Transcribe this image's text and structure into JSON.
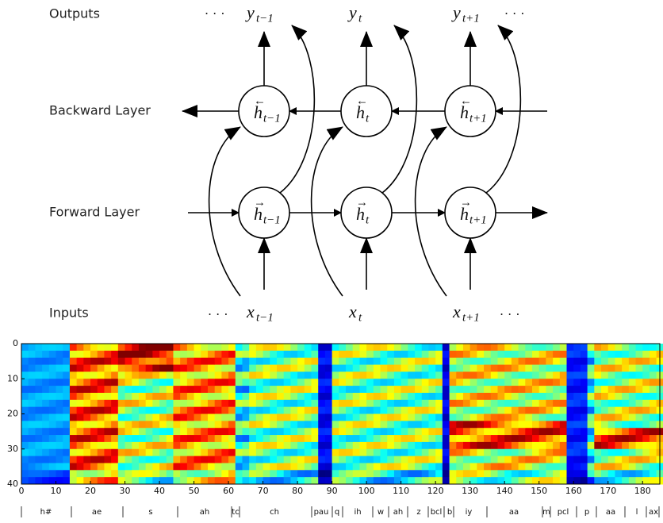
{
  "row_labels": {
    "outputs": "Outputs",
    "backward": "Backward Layer",
    "forward": "Forward Layer",
    "inputs": "Inputs"
  },
  "ellipsis": "· · ·",
  "outputs": [
    {
      "sym": "y",
      "sub": "t−1"
    },
    {
      "sym": "y",
      "sub": "t"
    },
    {
      "sym": "y",
      "sub": "t+1"
    }
  ],
  "backward_nodes": [
    {
      "sym": "h",
      "arrow": "←",
      "sub": "t−1"
    },
    {
      "sym": "h",
      "arrow": "←",
      "sub": "t"
    },
    {
      "sym": "h",
      "arrow": "←",
      "sub": "t+1"
    }
  ],
  "forward_nodes": [
    {
      "sym": "h",
      "arrow": "→",
      "sub": "t−1"
    },
    {
      "sym": "h",
      "arrow": "→",
      "sub": "t"
    },
    {
      "sym": "h",
      "arrow": "→",
      "sub": "t+1"
    }
  ],
  "inputs": [
    {
      "sym": "x",
      "sub": "t−1"
    },
    {
      "sym": "x",
      "sub": "t"
    },
    {
      "sym": "x",
      "sub": "t+1"
    }
  ],
  "spectrogram": {
    "xlim": [
      0,
      185
    ],
    "ylim": [
      0,
      40
    ],
    "xticks": [
      0,
      10,
      20,
      30,
      40,
      50,
      60,
      70,
      80,
      90,
      100,
      110,
      120,
      130,
      140,
      150,
      160,
      170,
      180
    ],
    "yticks": [
      0,
      10,
      20,
      30,
      40
    ],
    "phonemes": [
      "h#",
      "ae",
      "s",
      "ah",
      "tc",
      "ch",
      "pau",
      "q",
      "ih",
      "w",
      "ah",
      "z",
      "bcl",
      "b",
      "iy",
      "aa",
      "m",
      "pcl",
      "p",
      "aa",
      "l",
      "ax"
    ]
  }
}
